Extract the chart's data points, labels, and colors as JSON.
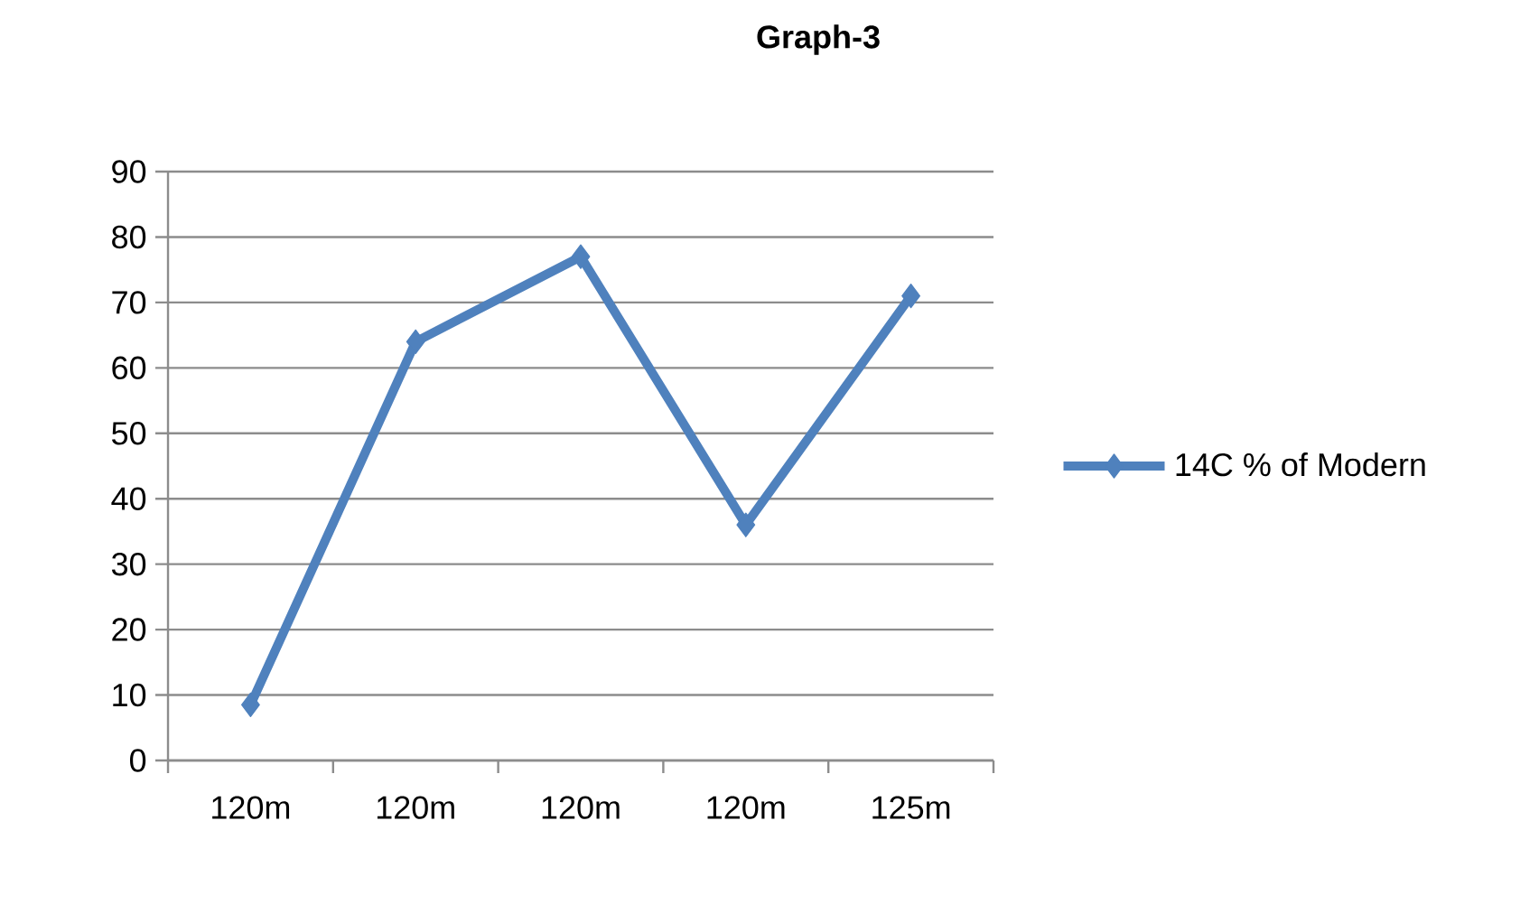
{
  "chart_data": {
    "type": "line",
    "title": "Graph-3",
    "categories": [
      "120m",
      "120m",
      "120m",
      "120m",
      "125m"
    ],
    "series": [
      {
        "name": "14C % of Modern",
        "color": "#4f81bd",
        "values": [
          8.5,
          64,
          77,
          36,
          71
        ]
      }
    ],
    "ylim": [
      0,
      90
    ],
    "yticks": [
      0,
      10,
      20,
      30,
      40,
      50,
      60,
      70,
      80,
      90
    ],
    "grid": "y",
    "legend": "right",
    "marker": "diamond",
    "line_style": "solid"
  }
}
